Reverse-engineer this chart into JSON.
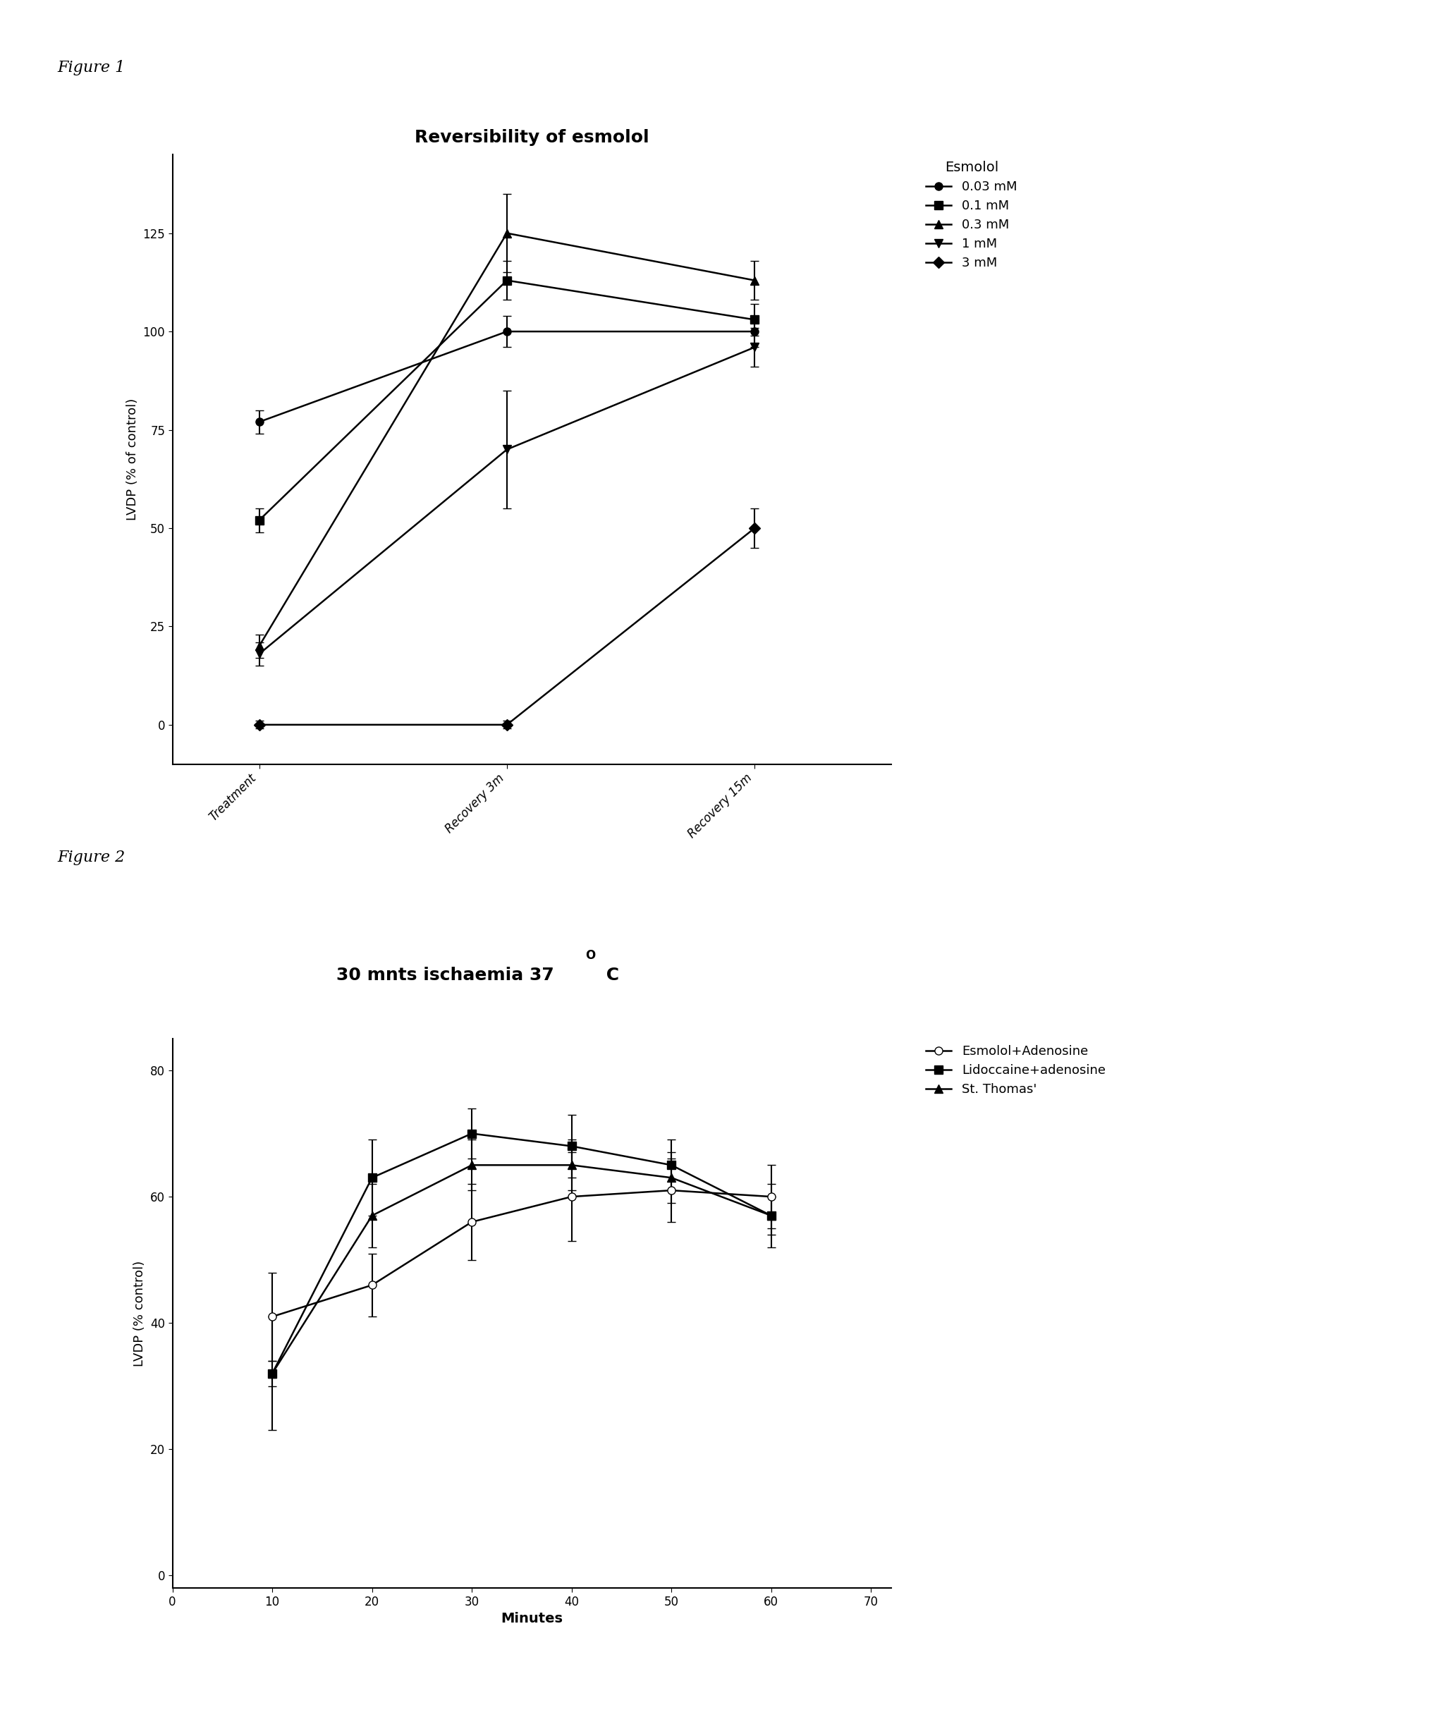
{
  "fig1": {
    "title": "Reversibility of esmolol",
    "ylabel": "LVDP (% of control)",
    "xtick_labels": [
      "Treatment",
      "Recovery 3m",
      "Recovery 15m"
    ],
    "yticks": [
      0,
      25,
      50,
      75,
      100,
      125
    ],
    "ylim": [
      -10,
      145
    ],
    "legend_title": "Esmolol",
    "series": [
      {
        "label": "0.03 mM",
        "marker": "o",
        "color": "#000000",
        "values": [
          77,
          100,
          100
        ],
        "errors": [
          3,
          4,
          4
        ]
      },
      {
        "label": "0.1 mM",
        "marker": "s",
        "color": "#000000",
        "values": [
          52,
          113,
          103
        ],
        "errors": [
          3,
          5,
          4
        ]
      },
      {
        "label": "0.3 mM",
        "marker": "^",
        "color": "#000000",
        "values": [
          20,
          125,
          113
        ],
        "errors": [
          3,
          10,
          5
        ]
      },
      {
        "label": "1 mM",
        "marker": "v",
        "color": "#000000",
        "values": [
          18,
          70,
          96
        ],
        "errors": [
          3,
          15,
          5
        ]
      },
      {
        "label": "3 mM",
        "marker": "D",
        "color": "#000000",
        "values": [
          0,
          0,
          50
        ],
        "errors": [
          1,
          1,
          5
        ]
      }
    ]
  },
  "fig2": {
    "xlabel": "Minutes",
    "ylabel": "LVDP (% control)",
    "xticks": [
      0,
      10,
      20,
      30,
      40,
      50,
      60,
      70
    ],
    "yticks": [
      0,
      20,
      40,
      60,
      80
    ],
    "ylim": [
      -2,
      85
    ],
    "xlim": [
      0,
      72
    ],
    "series": [
      {
        "label": "Esmolol+Adenosine",
        "marker": "o",
        "color": "#000000",
        "fillstyle": "none",
        "values": [
          41,
          46,
          56,
          60,
          61,
          60
        ],
        "errors": [
          7,
          5,
          6,
          7,
          5,
          5
        ]
      },
      {
        "label": "Lidoccaine+adenosine",
        "marker": "s",
        "color": "#000000",
        "fillstyle": "full",
        "values": [
          32,
          63,
          70,
          68,
          65,
          57
        ],
        "errors": [
          2,
          6,
          4,
          5,
          4,
          5
        ]
      },
      {
        "label": "St. Thomas'",
        "marker": "^",
        "color": "#000000",
        "fillstyle": "full",
        "values": [
          32,
          57,
          65,
          65,
          63,
          57
        ],
        "errors": [
          9,
          5,
          4,
          4,
          4,
          3
        ]
      }
    ],
    "xdata": [
      10,
      20,
      30,
      40,
      50,
      60
    ]
  },
  "figure_label1": "Figure 1",
  "figure_label2": "Figure 2",
  "background_color": "#ffffff"
}
